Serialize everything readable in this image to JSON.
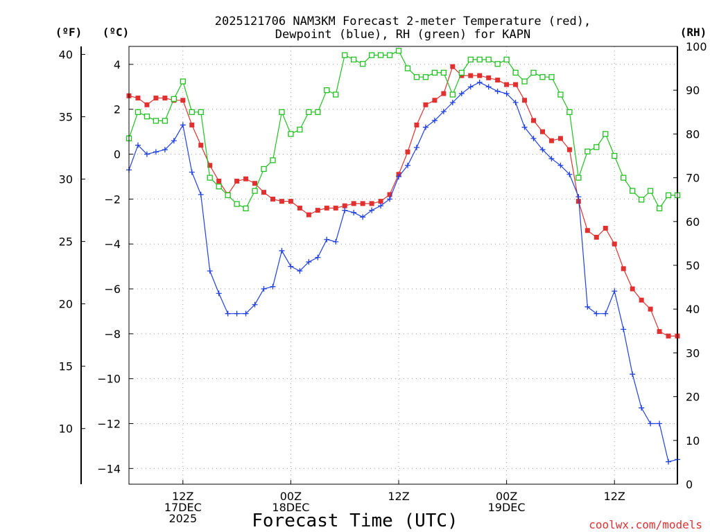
{
  "chart_data": {
    "type": "line",
    "title": [
      "2025121706 NAM3KM Forecast 2-meter Temperature (red),",
      "Dewpoint (blue), RH (green) for KAPN"
    ],
    "xlabel": "Forecast Time (UTC)",
    "credit": "coolwx.com/models",
    "units": {
      "fahrenheit": "(ºF)",
      "celsius": "(ºC)",
      "rh": "(RH)"
    },
    "x_range_hours": [
      0,
      61
    ],
    "x_ticks": [
      {
        "hour": 6,
        "lines": [
          "12Z",
          "17DEC",
          "2025"
        ]
      },
      {
        "hour": 18,
        "lines": [
          "00Z",
          "18DEC"
        ]
      },
      {
        "hour": 30,
        "lines": [
          "12Z"
        ]
      },
      {
        "hour": 42,
        "lines": [
          "00Z",
          "19DEC"
        ]
      },
      {
        "hour": 54,
        "lines": [
          "12Z"
        ]
      }
    ],
    "celsius_axis": {
      "range": [
        -14.7,
        4.8
      ],
      "ticks": [
        4,
        2,
        0,
        -2,
        -4,
        -6,
        -8,
        -10,
        -12,
        -14
      ]
    },
    "fahrenheit_axis": {
      "ticks": [
        40,
        35,
        30,
        25,
        20,
        15,
        10
      ]
    },
    "rh_axis": {
      "range": [
        0,
        100
      ],
      "ticks": [
        100,
        90,
        80,
        70,
        60,
        50,
        40,
        30,
        20,
        10,
        0
      ]
    },
    "x_hours": [
      0,
      1,
      2,
      3,
      4,
      5,
      6,
      7,
      8,
      9,
      10,
      11,
      12,
      13,
      14,
      15,
      16,
      17,
      18,
      19,
      20,
      21,
      22,
      23,
      24,
      25,
      26,
      27,
      28,
      29,
      30,
      31,
      32,
      33,
      34,
      35,
      36,
      37,
      38,
      39,
      40,
      41,
      42,
      43,
      44,
      45,
      46,
      47,
      48,
      49,
      50,
      51,
      52,
      53,
      54,
      55,
      56,
      57,
      58,
      59,
      60,
      61
    ],
    "series": [
      {
        "name": "Temperature",
        "unit": "C",
        "color": "#e03030",
        "marker": "filled-square",
        "values": [
          2.6,
          2.5,
          2.2,
          2.5,
          2.5,
          2.4,
          2.4,
          1.3,
          0.4,
          -0.5,
          -1.2,
          -1.8,
          -1.2,
          -1.1,
          -1.3,
          -1.7,
          -2.0,
          -2.1,
          -2.1,
          -2.4,
          -2.7,
          -2.5,
          -2.4,
          -2.4,
          -2.3,
          -2.2,
          -2.2,
          -2.2,
          -2.1,
          -1.8,
          -0.9,
          0.1,
          1.3,
          2.2,
          2.4,
          2.7,
          3.9,
          3.5,
          3.5,
          3.5,
          3.4,
          3.3,
          3.1,
          3.1,
          2.4,
          1.5,
          1.0,
          0.6,
          0.7,
          0.2,
          -2.1,
          -3.4,
          -3.7,
          -3.3,
          -4.0,
          -5.1,
          -6.0,
          -6.5,
          -6.9,
          -7.9,
          -8.1,
          -8.1
        ]
      },
      {
        "name": "Dewpoint",
        "unit": "C",
        "color": "#2040e0",
        "marker": "plus",
        "values": [
          -0.7,
          0.4,
          0.0,
          0.1,
          0.2,
          0.6,
          1.3,
          -0.8,
          -1.8,
          -5.2,
          -6.2,
          -7.1,
          -7.1,
          -7.1,
          -6.7,
          -6.0,
          -5.9,
          -4.3,
          -5.0,
          -5.2,
          -4.8,
          -4.6,
          -3.8,
          -3.9,
          -2.5,
          -2.6,
          -2.8,
          -2.5,
          -2.3,
          -2.0,
          -1.0,
          -0.5,
          0.3,
          1.2,
          1.5,
          1.9,
          2.3,
          2.7,
          3.0,
          3.2,
          3.0,
          2.8,
          2.7,
          2.3,
          1.2,
          0.7,
          0.2,
          -0.2,
          -0.5,
          -0.9,
          -1.9,
          -6.8,
          -7.1,
          -7.1,
          -6.1,
          -7.8,
          -9.8,
          -11.3,
          -12.0,
          -12.0,
          -13.7,
          -13.6
        ]
      },
      {
        "name": "RH",
        "unit": "%",
        "color": "#20c020",
        "marker": "open-square",
        "values": [
          79,
          85,
          84,
          83,
          83,
          88,
          92,
          85,
          85,
          70,
          68,
          66,
          64,
          63,
          67,
          72,
          74,
          85,
          80,
          81,
          85,
          85,
          90,
          89,
          98,
          97,
          96,
          98,
          98,
          98,
          99,
          95,
          93,
          93,
          94,
          94,
          89,
          94,
          97,
          97,
          97,
          96,
          97,
          94,
          92,
          94,
          93,
          93,
          89,
          85,
          70,
          76,
          77,
          80,
          75,
          70,
          67,
          65,
          67,
          63,
          66,
          66
        ]
      }
    ]
  }
}
